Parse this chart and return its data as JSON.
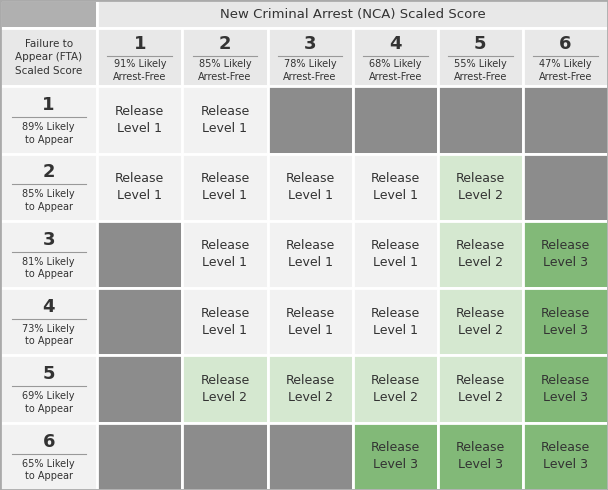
{
  "title": "New Criminal Arrest (NCA) Scaled Score",
  "row_header_title": "Failure to\nAppear (FTA)\nScaled Score",
  "nca_cols": [
    {
      "num": "1",
      "pct": "91% Likely\nArrest-Free"
    },
    {
      "num": "2",
      "pct": "85% Likely\nArrest-Free"
    },
    {
      "num": "3",
      "pct": "78% Likely\nArrest-Free"
    },
    {
      "num": "4",
      "pct": "68% Likely\nArrest-Free"
    },
    {
      "num": "5",
      "pct": "55% Likely\nArrest-Free"
    },
    {
      "num": "6",
      "pct": "47% Likely\nArrest-Free"
    }
  ],
  "fta_rows": [
    {
      "num": "1",
      "pct": "89% Likely\nto Appear"
    },
    {
      "num": "2",
      "pct": "85% Likely\nto Appear"
    },
    {
      "num": "3",
      "pct": "81% Likely\nto Appear"
    },
    {
      "num": "4",
      "pct": "73% Likely\nto Appear"
    },
    {
      "num": "5",
      "pct": "69% Likely\nto Appear"
    },
    {
      "num": "6",
      "pct": "65% Likely\nto Appear"
    }
  ],
  "cell_data": [
    [
      "Release\nLevel 1",
      "Release\nLevel 1",
      "",
      "",
      "",
      ""
    ],
    [
      "Release\nLevel 1",
      "Release\nLevel 1",
      "Release\nLevel 1",
      "Release\nLevel 1",
      "Release\nLevel 2",
      ""
    ],
    [
      "",
      "Release\nLevel 1",
      "Release\nLevel 1",
      "Release\nLevel 1",
      "Release\nLevel 2",
      "Release\nLevel 3"
    ],
    [
      "",
      "Release\nLevel 1",
      "Release\nLevel 1",
      "Release\nLevel 1",
      "Release\nLevel 2",
      "Release\nLevel 3"
    ],
    [
      "",
      "Release\nLevel 2",
      "Release\nLevel 2",
      "Release\nLevel 2",
      "Release\nLevel 2",
      "Release\nLevel 3"
    ],
    [
      "",
      "",
      "",
      "Release\nLevel 3",
      "Release\nLevel 3",
      "Release\nLevel 3"
    ]
  ],
  "cell_colors": [
    [
      "#f2f2f2",
      "#f2f2f2",
      "#8c8c8c",
      "#8c8c8c",
      "#8c8c8c",
      "#8c8c8c"
    ],
    [
      "#f2f2f2",
      "#f2f2f2",
      "#f2f2f2",
      "#f2f2f2",
      "#d5e8d0",
      "#8c8c8c"
    ],
    [
      "#8c8c8c",
      "#f2f2f2",
      "#f2f2f2",
      "#f2f2f2",
      "#d5e8d0",
      "#82b978"
    ],
    [
      "#8c8c8c",
      "#f2f2f2",
      "#f2f2f2",
      "#f2f2f2",
      "#d5e8d0",
      "#82b978"
    ],
    [
      "#8c8c8c",
      "#d5e8d0",
      "#d5e8d0",
      "#d5e8d0",
      "#d5e8d0",
      "#82b978"
    ],
    [
      "#8c8c8c",
      "#8c8c8c",
      "#8c8c8c",
      "#82b978",
      "#82b978",
      "#82b978"
    ]
  ],
  "header_bg": "#e8e8e8",
  "top_left_bg": "#b0b0b0",
  "row_header_bg": "#f2f2f2",
  "border_color": "#ffffff",
  "text_color": "#333333",
  "num_fontsize": 13,
  "pct_fontsize": 7,
  "cell_fontsize": 9,
  "header_line_color": "#999999",
  "fig_bg": "#dddddd"
}
